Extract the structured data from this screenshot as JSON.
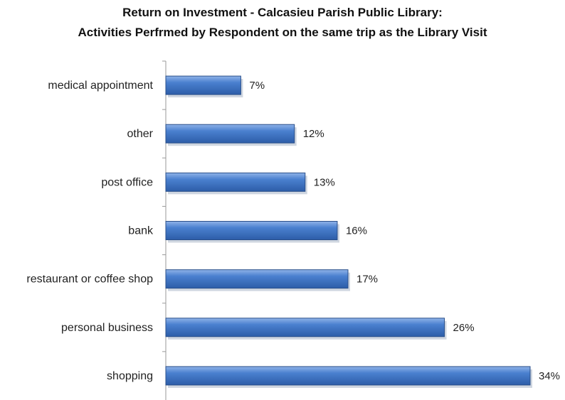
{
  "chart_data": {
    "type": "bar",
    "orientation": "horizontal",
    "title": "Return on Investment - Calcasieu Parish Public Library:",
    "subtitle": "Activities Perfrmed by Respondent on the same trip as the Library Visit",
    "categories": [
      "medical appointment",
      "other",
      "post office",
      "bank",
      "restaurant or coffee shop",
      "personal business",
      "shopping"
    ],
    "values": [
      7,
      12,
      13,
      16,
      17,
      26,
      34
    ],
    "value_labels": [
      "7%",
      "12%",
      "13%",
      "16%",
      "17%",
      "26%",
      "34%"
    ],
    "unit": "%",
    "xlim": [
      0,
      34
    ],
    "grid": false,
    "legend": "none",
    "bar_color": "#3f76c4",
    "bar_edge_color": "#2a4f8a"
  }
}
